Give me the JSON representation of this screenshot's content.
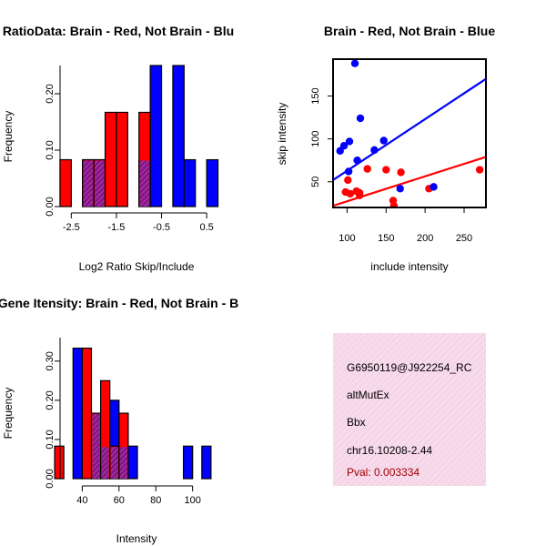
{
  "colors": {
    "red": "#ff0000",
    "blue": "#0000ff",
    "overlap": "#8b1a9b",
    "panel": "#f7dbeb",
    "pval": "#a00000"
  },
  "chart_data": [
    {
      "type": "bar",
      "title": "RatioData: Brain - Red, Not Brain - Blu",
      "xlabel": "Log2 Ratio Skip/Include",
      "ylabel": "Frequency",
      "xlim": [
        -2.95,
        0.8
      ],
      "ylim": [
        0,
        0.25
      ],
      "xticks": [
        -2.5,
        -1.5,
        -0.5,
        0.5
      ],
      "xtick_labels": [
        "-2.5",
        "-1.5",
        "-0.5",
        "0.5"
      ],
      "yticks": [
        0,
        0.1,
        0.2
      ],
      "ytick_labels": [
        "0.00",
        "0.10",
        "0.20"
      ],
      "series": [
        {
          "name": "Brain",
          "color": "red",
          "bins": [
            {
              "x0": -2.75,
              "x1": -2.5,
              "y": 0.083
            },
            {
              "x0": -2.25,
              "x1": -2.0,
              "y": 0.083
            },
            {
              "x0": -2.0,
              "x1": -1.75,
              "y": 0.083
            },
            {
              "x0": -1.75,
              "x1": -1.5,
              "y": 0.167
            },
            {
              "x0": -1.5,
              "x1": -1.25,
              "y": 0.167
            },
            {
              "x0": -1.0,
              "x1": -0.75,
              "y": 0.167
            }
          ]
        },
        {
          "name": "Not Brain",
          "color": "blue",
          "bins": [
            {
              "x0": -2.25,
              "x1": -2.0,
              "y": 0.083
            },
            {
              "x0": -2.0,
              "x1": -1.75,
              "y": 0.083
            },
            {
              "x0": -1.0,
              "x1": -0.75,
              "y": 0.083
            },
            {
              "x0": -0.75,
              "x1": -0.5,
              "y": 0.25
            },
            {
              "x0": -0.25,
              "x1": 0.0,
              "y": 0.25
            },
            {
              "x0": 0.0,
              "x1": 0.25,
              "y": 0.083
            },
            {
              "x0": 0.5,
              "x1": 0.75,
              "y": 0.083
            }
          ]
        }
      ]
    },
    {
      "type": "scatter",
      "title": "Brain - Red, Not Brain - Blue",
      "xlabel": "include intensity",
      "ylabel": "skip intensity",
      "xlim": [
        82,
        278
      ],
      "ylim": [
        20,
        193
      ],
      "xticks": [
        100,
        150,
        200,
        250
      ],
      "xtick_labels": [
        "100",
        "150",
        "200",
        "250"
      ],
      "yticks": [
        50,
        100,
        150
      ],
      "ytick_labels": [
        "50",
        "100",
        "150"
      ],
      "series": [
        {
          "name": "Brain",
          "color": "red",
          "points": [
            [
              98,
              38
            ],
            [
              101,
              52
            ],
            [
              104,
              36
            ],
            [
              112,
              39
            ],
            [
              116,
              37
            ],
            [
              116,
              34
            ],
            [
              126,
              65
            ],
            [
              150,
              64
            ],
            [
              159,
              28
            ],
            [
              160,
              22
            ],
            [
              169,
              61
            ],
            [
              205,
              42
            ],
            [
              270,
              64
            ]
          ],
          "fit": [
            [
              82,
              22
            ],
            [
              278,
              79
            ]
          ]
        },
        {
          "name": "Not Brain",
          "color": "blue",
          "points": [
            [
              91,
              86
            ],
            [
              96,
              92
            ],
            [
              103,
              97
            ],
            [
              102,
              62
            ],
            [
              110,
              188
            ],
            [
              113,
              75
            ],
            [
              117,
              124
            ],
            [
              135,
              87
            ],
            [
              147,
              98
            ],
            [
              168,
              42
            ],
            [
              211,
              44
            ]
          ],
          "fit": [
            [
              82,
              52
            ],
            [
              278,
              170
            ]
          ]
        }
      ]
    },
    {
      "type": "bar",
      "title": "Gene Itensity: Brain - Red, Not Brain - B",
      "xlabel": "Intensity",
      "ylabel": "Frequency",
      "xlim": [
        23,
        115
      ],
      "ylim": [
        0,
        0.36
      ],
      "xticks": [
        40,
        60,
        80,
        100
      ],
      "xtick_labels": [
        "40",
        "60",
        "80",
        "100"
      ],
      "yticks": [
        0,
        0.1,
        0.2,
        0.3
      ],
      "ytick_labels": [
        "0.00",
        "0.10",
        "0.20",
        "0.30"
      ],
      "series": [
        {
          "name": "Brain",
          "color": "red",
          "bins": [
            {
              "x0": 25,
              "x1": 30,
              "y": 0.083
            },
            {
              "x0": 40,
              "x1": 45,
              "y": 0.333
            },
            {
              "x0": 45,
              "x1": 50,
              "y": 0.167
            },
            {
              "x0": 50,
              "x1": 55,
              "y": 0.25
            },
            {
              "x0": 55,
              "x1": 60,
              "y": 0.083
            },
            {
              "x0": 60,
              "x1": 65,
              "y": 0.167
            }
          ]
        },
        {
          "name": "Not Brain",
          "color": "blue",
          "bins": [
            {
              "x0": 35,
              "x1": 40,
              "y": 0.333
            },
            {
              "x0": 45,
              "x1": 50,
              "y": 0.167
            },
            {
              "x0": 50,
              "x1": 55,
              "y": 0.083
            },
            {
              "x0": 55,
              "x1": 60,
              "y": 0.2
            },
            {
              "x0": 60,
              "x1": 65,
              "y": 0.083
            },
            {
              "x0": 65,
              "x1": 70,
              "y": 0.083
            },
            {
              "x0": 95,
              "x1": 100,
              "y": 0.083
            },
            {
              "x0": 105,
              "x1": 110,
              "y": 0.083
            }
          ]
        }
      ]
    }
  ],
  "info_panel": {
    "lines": [
      "G6950119@J922254_RC",
      "altMutEx",
      "Bbx",
      "chr16.10208-2.44"
    ],
    "pval": "Pval: 0.003334"
  }
}
